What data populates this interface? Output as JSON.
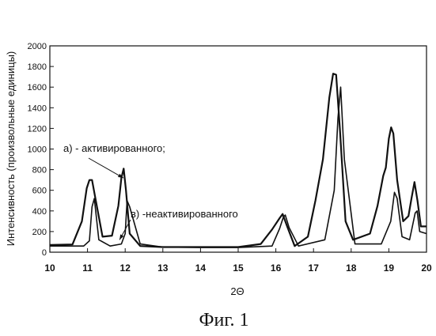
{
  "chart_data": {
    "type": "line",
    "xlabel": "2Θ",
    "ylabel": "Интенсивность (произвольные единицы)",
    "xlim": [
      10,
      20
    ],
    "ylim": [
      0,
      2000
    ],
    "xticks": [
      10,
      11,
      12,
      13,
      14,
      15,
      16,
      17,
      18,
      19,
      20
    ],
    "yticks": [
      0,
      200,
      400,
      600,
      800,
      1000,
      1200,
      1400,
      1600,
      1800,
      2000
    ],
    "grid": false,
    "caption": "Фиг. 1",
    "annotations": [
      {
        "text": "а)  -  активированного;",
        "x": 12.0,
        "y": 720
      },
      {
        "text": "в)  -неактивированного",
        "x": 12.1,
        "y": 140
      }
    ],
    "series": [
      {
        "x": [
          10.0,
          10.6,
          10.85,
          10.98,
          11.05,
          11.12,
          11.22,
          11.4,
          11.65,
          11.82,
          11.9,
          11.96,
          12.02,
          12.12,
          12.4,
          13.0,
          14.0,
          15.0,
          15.6,
          15.9,
          16.1,
          16.18,
          16.3,
          16.5,
          16.85,
          17.05,
          17.25,
          17.42,
          17.52,
          17.6,
          17.7,
          17.85,
          18.05,
          18.5,
          18.7,
          18.85,
          18.92,
          19.0,
          19.06,
          19.12,
          19.22,
          19.38,
          19.52,
          19.6,
          19.68,
          19.76,
          19.85,
          20.0
        ],
        "y": [
          70,
          75,
          300,
          620,
          700,
          700,
          500,
          150,
          160,
          450,
          720,
          810,
          600,
          180,
          60,
          50,
          50,
          50,
          80,
          220,
          330,
          370,
          250,
          60,
          150,
          500,
          900,
          1500,
          1730,
          1720,
          1200,
          300,
          120,
          180,
          450,
          740,
          820,
          1100,
          1210,
          1150,
          700,
          300,
          350,
          520,
          680,
          500,
          250,
          250
        ]
      },
      {
        "x": [
          10.0,
          10.9,
          11.05,
          11.12,
          11.18,
          11.3,
          11.6,
          11.9,
          12.0,
          12.05,
          12.12,
          12.4,
          13.0,
          14.0,
          15.0,
          15.9,
          16.1,
          16.2,
          16.25,
          16.35,
          16.6,
          17.3,
          17.55,
          17.65,
          17.72,
          17.82,
          18.1,
          18.8,
          19.05,
          19.15,
          19.22,
          19.35,
          19.55,
          19.7,
          19.75,
          19.82,
          20.0
        ],
        "y": [
          60,
          60,
          110,
          440,
          520,
          120,
          60,
          80,
          180,
          500,
          440,
          80,
          50,
          45,
          45,
          60,
          230,
          340,
          360,
          240,
          60,
          120,
          600,
          1300,
          1600,
          900,
          80,
          80,
          300,
          580,
          520,
          150,
          120,
          380,
          400,
          200,
          180
        ]
      }
    ]
  }
}
